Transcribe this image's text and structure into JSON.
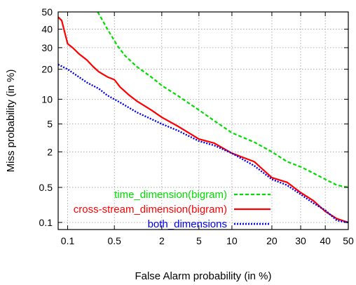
{
  "chart_data": {
    "type": "line",
    "title": "",
    "xlabel": "False Alarm probability (in %)",
    "ylabel": "Miss probability (in %)",
    "x_scale": "probit",
    "y_scale": "probit",
    "xlim": [
      0.07,
      50
    ],
    "ylim": [
      0.07,
      50
    ],
    "x_ticks": [
      {
        "value": 0.1,
        "label": "0.1"
      },
      {
        "value": 0.5,
        "label": "0.5"
      },
      {
        "value": 2,
        "label": "2"
      },
      {
        "value": 5,
        "label": "5"
      },
      {
        "value": 10,
        "label": "10"
      },
      {
        "value": 20,
        "label": "20"
      },
      {
        "value": 30,
        "label": "30"
      },
      {
        "value": 40,
        "label": "40"
      },
      {
        "value": 50,
        "label": "50"
      }
    ],
    "y_ticks": [
      {
        "value": 0.1,
        "label": "0.1"
      },
      {
        "value": 0.5,
        "label": "0.5"
      },
      {
        "value": 2,
        "label": "2"
      },
      {
        "value": 5,
        "label": "5"
      },
      {
        "value": 10,
        "label": "10"
      },
      {
        "value": 20,
        "label": "20"
      },
      {
        "value": 30,
        "label": "30"
      },
      {
        "value": 40,
        "label": "40"
      },
      {
        "value": 50,
        "label": "50"
      }
    ],
    "grid": true,
    "legend_position": "bottom-right",
    "series": [
      {
        "name": "time_dimension(bigram)",
        "color": "#00dd00",
        "dash": "dashed",
        "points": [
          [
            0.29,
            50
          ],
          [
            0.4,
            40
          ],
          [
            0.55,
            31
          ],
          [
            0.7,
            26
          ],
          [
            1.0,
            21
          ],
          [
            1.5,
            17
          ],
          [
            2.0,
            14
          ],
          [
            3.0,
            11
          ],
          [
            5.0,
            7.5
          ],
          [
            7.0,
            5.5
          ],
          [
            10.0,
            3.8
          ],
          [
            15.0,
            2.8
          ],
          [
            20.0,
            2.0
          ],
          [
            25.0,
            1.4
          ],
          [
            30.0,
            1.15
          ],
          [
            35.0,
            0.9
          ],
          [
            40.0,
            0.7
          ],
          [
            45.0,
            0.55
          ],
          [
            50.0,
            0.5
          ]
        ]
      },
      {
        "name": "cross-stream_dimension(bigram)",
        "color": "#ff0000",
        "dash": "solid",
        "points": [
          [
            0.07,
            47
          ],
          [
            0.08,
            45
          ],
          [
            0.09,
            38
          ],
          [
            0.1,
            32
          ],
          [
            0.12,
            30
          ],
          [
            0.15,
            27
          ],
          [
            0.2,
            24
          ],
          [
            0.25,
            21
          ],
          [
            0.3,
            19
          ],
          [
            0.4,
            17
          ],
          [
            0.5,
            16
          ],
          [
            0.6,
            13.5
          ],
          [
            0.8,
            11
          ],
          [
            1.0,
            9.5
          ],
          [
            1.5,
            7.5
          ],
          [
            2.0,
            6.1
          ],
          [
            3.0,
            4.7
          ],
          [
            5.0,
            3.1
          ],
          [
            7.0,
            2.7
          ],
          [
            10.0,
            1.9
          ],
          [
            15.0,
            1.4
          ],
          [
            20.0,
            0.75
          ],
          [
            25.0,
            0.62
          ],
          [
            30.0,
            0.4
          ],
          [
            35.0,
            0.28
          ],
          [
            40.0,
            0.17
          ],
          [
            45.0,
            0.12
          ],
          [
            50.0,
            0.1
          ]
        ]
      },
      {
        "name": "both_dimensions",
        "color": "#0000ee",
        "dash": "dotted",
        "points": [
          [
            0.07,
            22
          ],
          [
            0.1,
            20
          ],
          [
            0.15,
            17
          ],
          [
            0.2,
            15
          ],
          [
            0.3,
            13
          ],
          [
            0.4,
            11
          ],
          [
            0.5,
            10
          ],
          [
            0.7,
            8.5
          ],
          [
            1.0,
            7.0
          ],
          [
            1.5,
            5.8
          ],
          [
            2.0,
            5.0
          ],
          [
            3.0,
            4.1
          ],
          [
            5.0,
            2.9
          ],
          [
            7.0,
            2.5
          ],
          [
            10.0,
            1.9
          ],
          [
            15.0,
            1.2
          ],
          [
            20.0,
            0.7
          ],
          [
            25.0,
            0.55
          ],
          [
            30.0,
            0.37
          ],
          [
            35.0,
            0.25
          ],
          [
            40.0,
            0.18
          ],
          [
            45.0,
            0.11
          ],
          [
            50.0,
            0.1
          ]
        ]
      }
    ]
  }
}
